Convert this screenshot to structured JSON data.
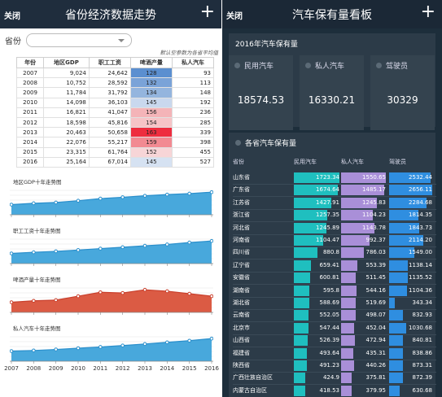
{
  "left": {
    "header": {
      "close_label": "关闭",
      "title": "省份经济数据走势",
      "plus_label": "+"
    },
    "province_label": "省份",
    "province_value": "",
    "note": "默认空参数为各省平均值",
    "table": {
      "headers": [
        "年份",
        "地区GDP",
        "职工工资",
        "啤酒产量",
        "私人汽车"
      ],
      "rows": [
        [
          "2007",
          "9,024",
          "24,642",
          "128",
          "93"
        ],
        [
          "2008",
          "10,752",
          "28,592",
          "132",
          "113"
        ],
        [
          "2009",
          "11,784",
          "31,792",
          "134",
          "148"
        ],
        [
          "2010",
          "14,098",
          "36,103",
          "145",
          "192"
        ],
        [
          "2011",
          "16,821",
          "41,047",
          "156",
          "236"
        ],
        [
          "2012",
          "18,598",
          "45,816",
          "154",
          "285"
        ],
        [
          "2013",
          "20,463",
          "50,658",
          "163",
          "339"
        ],
        [
          "2014",
          "22,076",
          "55,217",
          "159",
          "398"
        ],
        [
          "2015",
          "23,315",
          "61,764",
          "152",
          "455"
        ],
        [
          "2016",
          "25,164",
          "67,014",
          "145",
          "527"
        ]
      ],
      "wine_colors": [
        "#5b8fd0",
        "#7aa3d8",
        "#94b5de",
        "#c9d8ee",
        "#f4b4b8",
        "#f6c4c7",
        "#ee2d3f",
        "#f28a92",
        "#f7d5d7",
        "#d6e2f2"
      ]
    },
    "charts": [
      {
        "title": "地区GDP十年走势图",
        "color": "#2a8fcc",
        "fill": "#3ea3da",
        "values": [
          9024,
          10752,
          11784,
          14098,
          16821,
          18598,
          20463,
          22076,
          23315,
          25164
        ]
      },
      {
        "title": "职工工资十年走势图",
        "color": "#2a8fcc",
        "fill": "#3ea3da",
        "values": [
          24642,
          28592,
          31792,
          36103,
          41047,
          45816,
          50658,
          55217,
          61764,
          67014
        ]
      },
      {
        "title": "啤酒产量十年走势图",
        "color": "#c9402d",
        "fill": "#d9523a",
        "values": [
          128,
          132,
          134,
          145,
          156,
          154,
          163,
          159,
          152,
          145
        ]
      },
      {
        "title": "私人汽车十年走势图",
        "color": "#2a8fcc",
        "fill": "#3ea3da",
        "values": [
          93,
          113,
          148,
          192,
          236,
          285,
          339,
          398,
          455,
          527
        ]
      }
    ],
    "years": [
      "2007",
      "2008",
      "2009",
      "2010",
      "2011",
      "2012",
      "2013",
      "2014",
      "2015",
      "2016"
    ]
  },
  "right": {
    "header": {
      "close_label": "关闭",
      "title": "汽车保有量看板",
      "plus_label": "+"
    },
    "section1_title": "2016年汽车保有量",
    "stats": [
      {
        "label": "民用汽车",
        "value": "18574.53"
      },
      {
        "label": "私人汽车",
        "value": "16330.21"
      },
      {
        "label": "驾驶员",
        "value": "30329"
      }
    ],
    "section2_title": "各省汽车保有量",
    "columns": [
      "省份",
      "民用汽车",
      "私人汽车",
      "驾驶员"
    ],
    "bar_colors": {
      "civil": "#1fbfbf",
      "private": "#a98fd8",
      "driver": "#2f8ee0"
    },
    "provinces": [
      {
        "name": "山东省",
        "civil": "1723.34",
        "private": "1550.65",
        "driver": "2532.44"
      },
      {
        "name": "广东省",
        "civil": "1674.64",
        "private": "1485.17",
        "driver": "2656.11"
      },
      {
        "name": "江苏省",
        "civil": "1427.91",
        "private": "1245.83",
        "driver": "2284.68"
      },
      {
        "name": "浙江省",
        "civil": "1257.35",
        "private": "1104.23",
        "driver": "1814.35"
      },
      {
        "name": "河北省",
        "civil": "1245.89",
        "private": "1143.78",
        "driver": "1843.73"
      },
      {
        "name": "河南省",
        "civil": "1104.47",
        "private": "992.37",
        "driver": "2114.20"
      },
      {
        "name": "四川省",
        "civil": "880.8",
        "private": "786.03",
        "driver": "1549.00"
      },
      {
        "name": "辽宁省",
        "civil": "659.41",
        "private": "553.39",
        "driver": "1138.14"
      },
      {
        "name": "安徽省",
        "civil": "600.81",
        "private": "511.45",
        "driver": "1135.52"
      },
      {
        "name": "湖南省",
        "civil": "595.8",
        "private": "544.16",
        "driver": "1104.36"
      },
      {
        "name": "湖北省",
        "civil": "588.69",
        "private": "519.69",
        "driver": "343.34"
      },
      {
        "name": "云南省",
        "civil": "552.05",
        "private": "498.07",
        "driver": "832.93"
      },
      {
        "name": "北京市",
        "civil": "547.44",
        "private": "452.04",
        "driver": "1030.68"
      },
      {
        "name": "山西省",
        "civil": "526.39",
        "private": "472.94",
        "driver": "840.81"
      },
      {
        "name": "福建省",
        "civil": "493.64",
        "private": "435.31",
        "driver": "838.86"
      },
      {
        "name": "陕西省",
        "civil": "491.23",
        "private": "440.26",
        "driver": "873.31"
      },
      {
        "name": "广西壮族自治区",
        "civil": "424.9",
        "private": "375.81",
        "driver": "872.39"
      },
      {
        "name": "内蒙古自治区",
        "civil": "418.53",
        "private": "379.95",
        "driver": "630.68"
      }
    ]
  }
}
